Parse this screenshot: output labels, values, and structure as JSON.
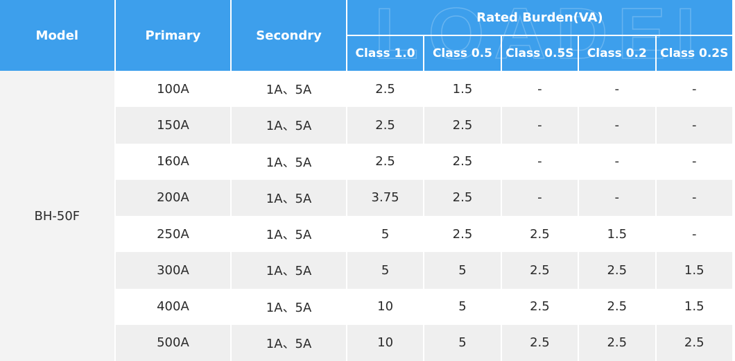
{
  "watermark": "LOADEL",
  "header": {
    "model": "Model",
    "primary": "Primary",
    "secondary": "Secondry",
    "rated_burden": "Rated Burden(VA)",
    "classes": [
      "Class 1.0",
      "Class 0.5",
      "Class 0.5S",
      "Class 0.2",
      "Class 0.2S"
    ]
  },
  "model": "BH-50F",
  "rows": [
    {
      "primary": "100A",
      "secondary": "1A、5A",
      "values": [
        "2.5",
        "1.5",
        "-",
        "-",
        "-"
      ]
    },
    {
      "primary": "150A",
      "secondary": "1A、5A",
      "values": [
        "2.5",
        "2.5",
        "-",
        "-",
        "-"
      ]
    },
    {
      "primary": "160A",
      "secondary": "1A、5A",
      "values": [
        "2.5",
        "2.5",
        "-",
        "-",
        "-"
      ]
    },
    {
      "primary": "200A",
      "secondary": "1A、5A",
      "values": [
        "3.75",
        "2.5",
        "-",
        "-",
        "-"
      ]
    },
    {
      "primary": "250A",
      "secondary": "1A、5A",
      "values": [
        "5",
        "2.5",
        "2.5",
        "1.5",
        "-"
      ]
    },
    {
      "primary": "300A",
      "secondary": "1A、5A",
      "values": [
        "5",
        "5",
        "2.5",
        "2.5",
        "1.5"
      ]
    },
    {
      "primary": "400A",
      "secondary": "1A、5A",
      "values": [
        "10",
        "5",
        "2.5",
        "2.5",
        "1.5"
      ]
    },
    {
      "primary": "500A",
      "secondary": "1A、5A",
      "values": [
        "10",
        "5",
        "2.5",
        "2.5",
        "2.5"
      ]
    }
  ]
}
